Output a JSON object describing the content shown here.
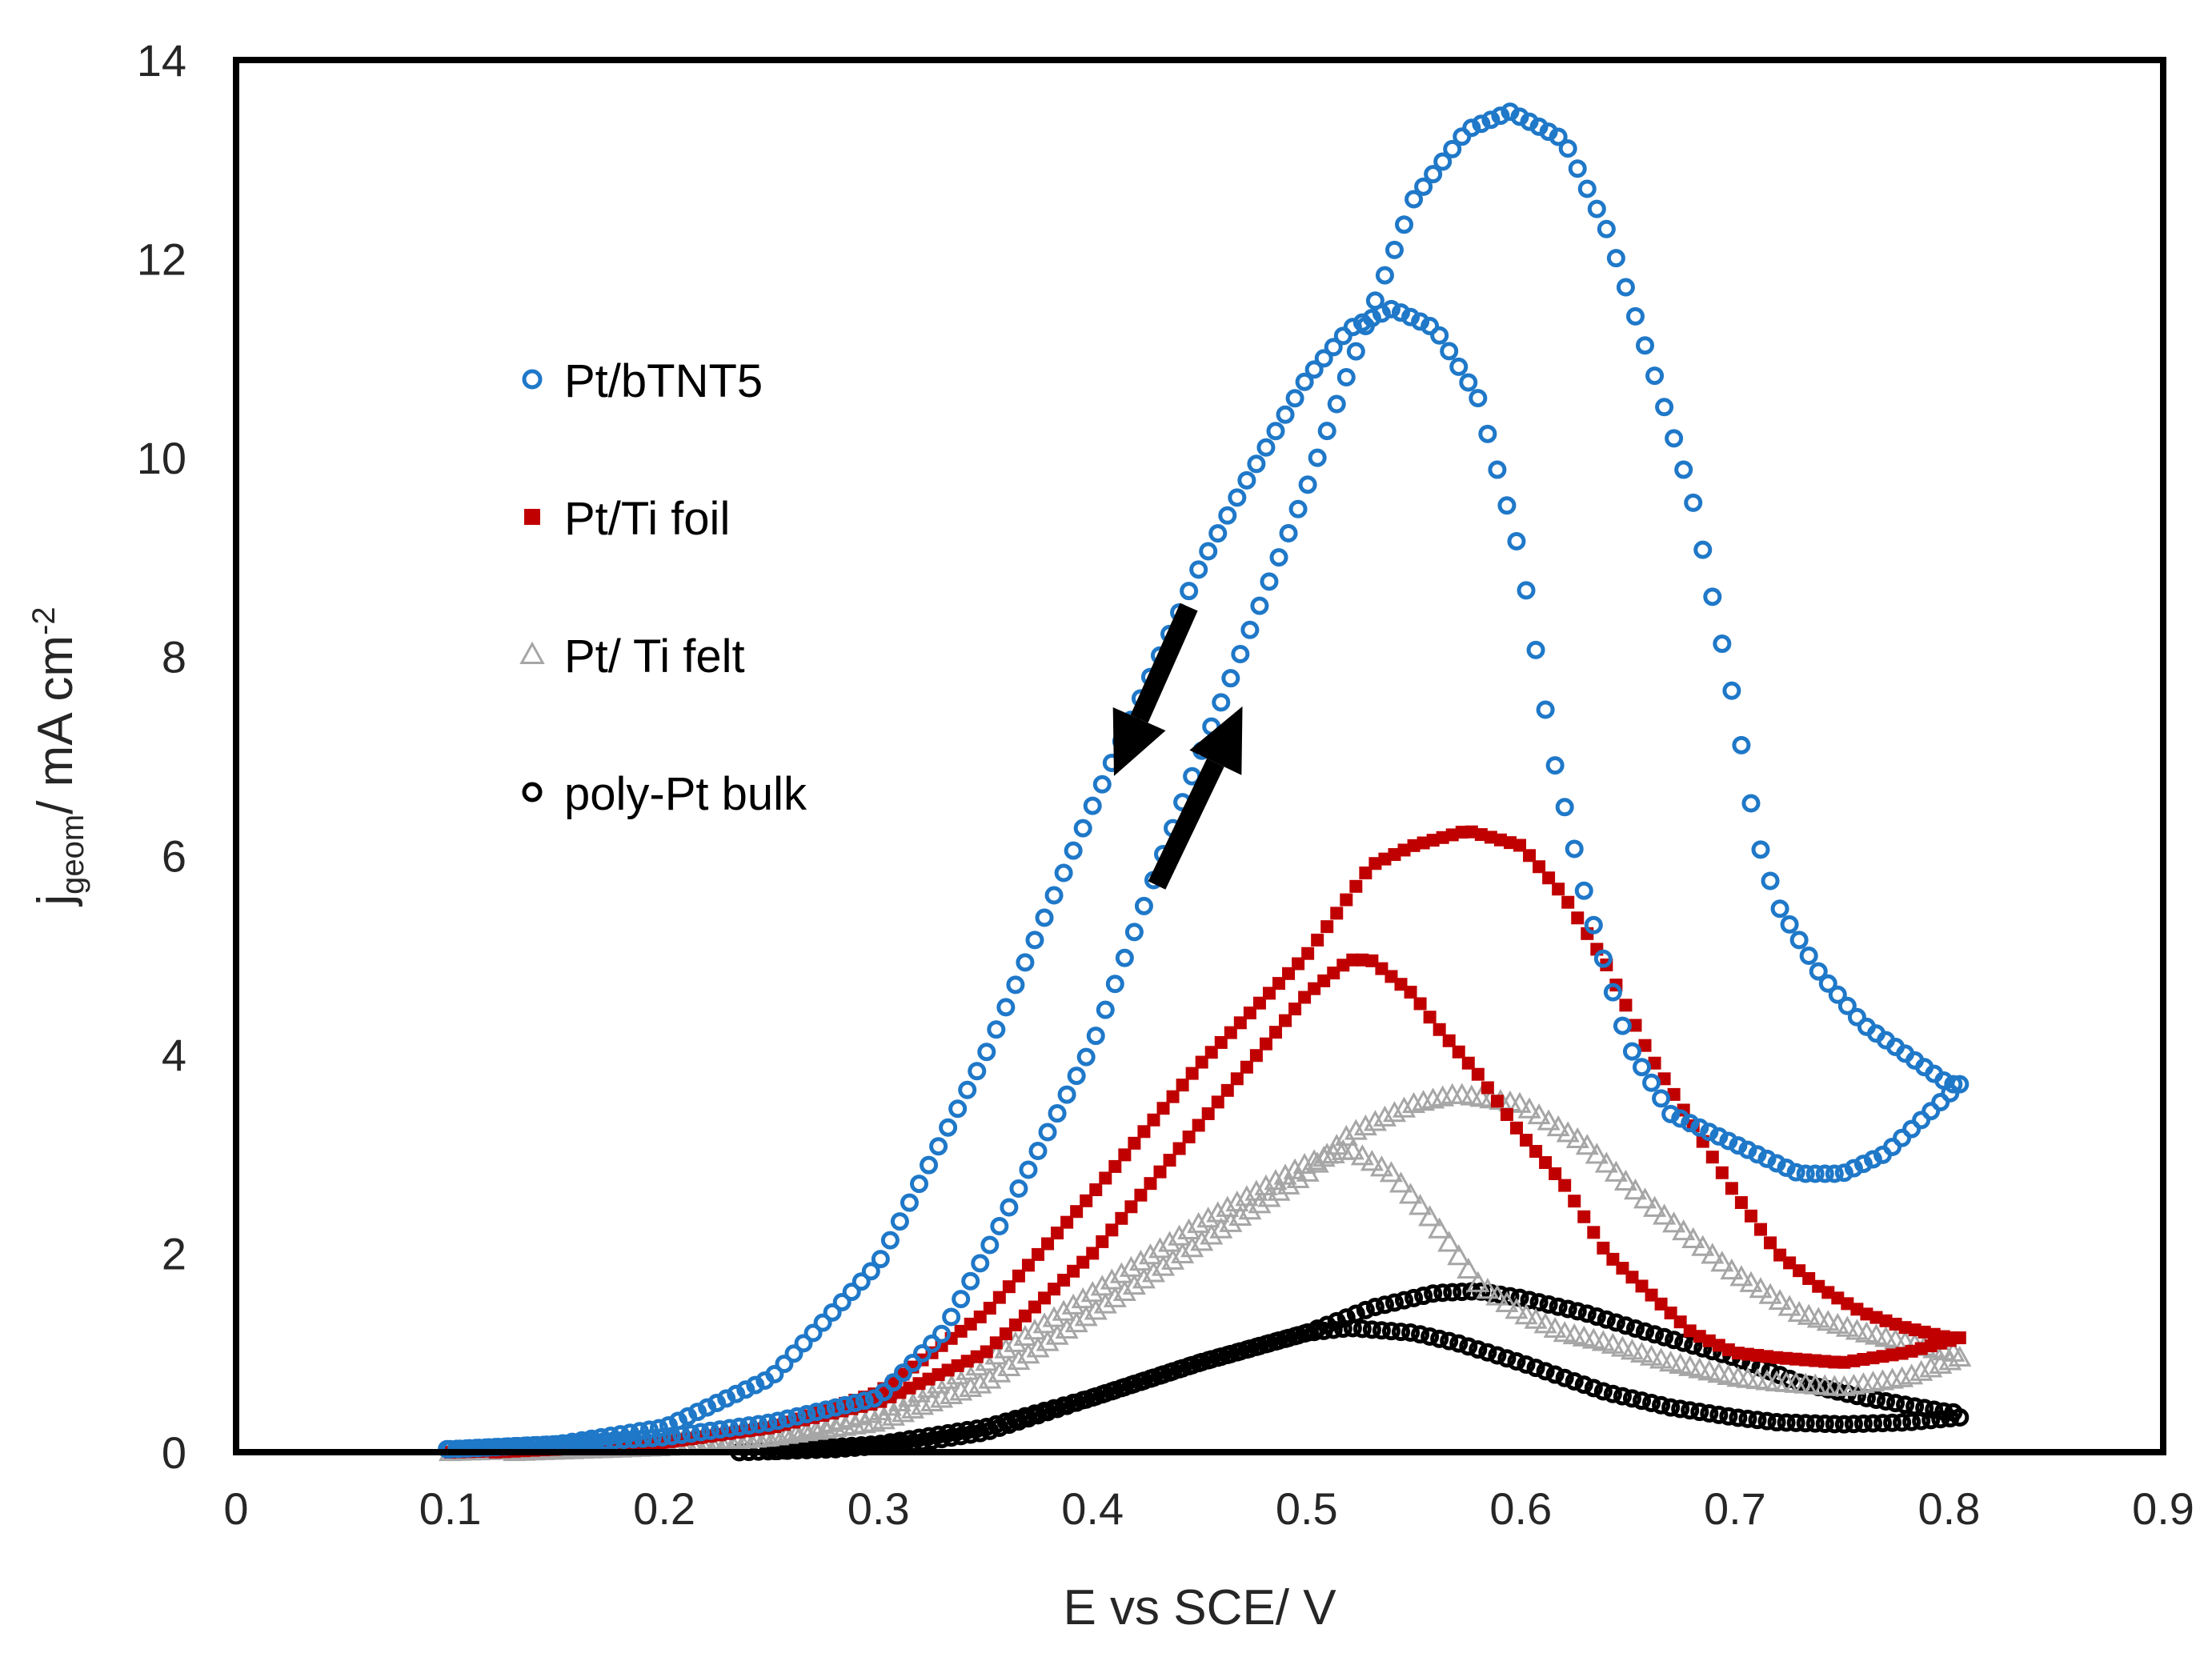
{
  "chart_data": {
    "type": "scatter",
    "title": "",
    "xlabel": "E vs SCE/ V",
    "ylabel": {
      "main": "j",
      "subscript": "geom",
      "rest": "/ mA cm",
      "superscript": "-2"
    },
    "xlim": [
      0,
      0.9
    ],
    "ylim": [
      0,
      14
    ],
    "x_ticks": [
      "0",
      "0.1",
      "0.2",
      "0.3",
      "0.4",
      "0.5",
      "0.6",
      "0.7",
      "0.8",
      "0.9"
    ],
    "y_ticks": [
      "0",
      "2",
      "4",
      "6",
      "8",
      "10",
      "12",
      "14"
    ],
    "grid": false,
    "legend_position": "upper-left-inside",
    "annotations": [
      {
        "type": "arrow",
        "direction": "down-left",
        "meaning": "reverse scan",
        "from": [
          0.445,
          8.5
        ],
        "to": [
          0.41,
          6.8
        ]
      },
      {
        "type": "arrow",
        "direction": "up-right",
        "meaning": "forward scan",
        "from": [
          0.43,
          5.7
        ],
        "to": [
          0.47,
          7.5
        ]
      }
    ],
    "series": [
      {
        "name": "Pt/bTNT5",
        "marker": "circle-open",
        "color": "#1f78c8",
        "branches": [
          {
            "scan": "forward",
            "points": [
              [
                0.1,
                0.03
              ],
              [
                0.15,
                0.08
              ],
              [
                0.2,
                0.15
              ],
              [
                0.25,
                0.3
              ],
              [
                0.3,
                0.55
              ],
              [
                0.33,
                1.2
              ],
              [
                0.35,
                2.0
              ],
              [
                0.4,
                4.1
              ],
              [
                0.45,
                7.0
              ],
              [
                0.5,
                9.7
              ],
              [
                0.52,
                10.9
              ],
              [
                0.55,
                12.6
              ],
              [
                0.575,
                13.3
              ],
              [
                0.595,
                13.48
              ],
              [
                0.62,
                13.2
              ],
              [
                0.64,
                12.3
              ],
              [
                0.66,
                11.0
              ],
              [
                0.68,
                9.6
              ],
              [
                0.7,
                7.5
              ],
              [
                0.71,
                6.2
              ],
              [
                0.72,
                5.5
              ],
              [
                0.74,
                4.8
              ],
              [
                0.76,
                4.3
              ],
              [
                0.78,
                4.0
              ],
              [
                0.8,
                3.7
              ]
            ]
          },
          {
            "scan": "reverse",
            "points": [
              [
                0.805,
                3.7
              ],
              [
                0.79,
                3.4
              ],
              [
                0.77,
                3.0
              ],
              [
                0.75,
                2.8
              ],
              [
                0.73,
                2.8
              ],
              [
                0.7,
                3.1
              ],
              [
                0.67,
                3.4
              ],
              [
                0.65,
                4.1
              ],
              [
                0.63,
                5.6
              ],
              [
                0.615,
                7.0
              ],
              [
                0.6,
                9.0
              ],
              [
                0.58,
                10.6
              ],
              [
                0.56,
                11.3
              ],
              [
                0.54,
                11.5
              ],
              [
                0.52,
                11.3
              ],
              [
                0.5,
                10.8
              ],
              [
                0.47,
                9.7
              ],
              [
                0.45,
                8.9
              ],
              [
                0.4,
                6.5
              ],
              [
                0.35,
                4.0
              ],
              [
                0.3,
                1.9
              ],
              [
                0.25,
                0.75
              ],
              [
                0.2,
                0.25
              ],
              [
                0.15,
                0.08
              ],
              [
                0.1,
                0.03
              ]
            ]
          }
        ]
      },
      {
        "name": "Pt/Ti foil",
        "marker": "square",
        "color": "#c00000",
        "branches": [
          {
            "scan": "forward",
            "points": [
              [
                0.1,
                0.0
              ],
              [
                0.15,
                0.03
              ],
              [
                0.2,
                0.1
              ],
              [
                0.25,
                0.25
              ],
              [
                0.3,
                0.6
              ],
              [
                0.35,
                1.4
              ],
              [
                0.4,
                2.6
              ],
              [
                0.45,
                3.9
              ],
              [
                0.5,
                5.0
              ],
              [
                0.53,
                5.9
              ],
              [
                0.55,
                6.1
              ],
              [
                0.575,
                6.25
              ],
              [
                0.6,
                6.1
              ],
              [
                0.62,
                5.6
              ],
              [
                0.64,
                4.9
              ],
              [
                0.66,
                4.0
              ],
              [
                0.68,
                3.3
              ],
              [
                0.7,
                2.6
              ],
              [
                0.72,
                2.0
              ],
              [
                0.74,
                1.65
              ],
              [
                0.76,
                1.4
              ],
              [
                0.78,
                1.25
              ],
              [
                0.8,
                1.15
              ]
            ]
          },
          {
            "scan": "reverse",
            "points": [
              [
                0.805,
                1.15
              ],
              [
                0.78,
                1.0
              ],
              [
                0.75,
                0.9
              ],
              [
                0.72,
                0.95
              ],
              [
                0.7,
                1.0
              ],
              [
                0.68,
                1.2
              ],
              [
                0.66,
                1.6
              ],
              [
                0.64,
                2.0
              ],
              [
                0.62,
                2.7
              ],
              [
                0.6,
                3.2
              ],
              [
                0.58,
                3.8
              ],
              [
                0.56,
                4.3
              ],
              [
                0.55,
                4.6
              ],
              [
                0.53,
                4.95
              ],
              [
                0.52,
                4.95
              ],
              [
                0.5,
                4.6
              ],
              [
                0.45,
                3.3
              ],
              [
                0.4,
                2.0
              ],
              [
                0.35,
                1.0
              ],
              [
                0.3,
                0.5
              ],
              [
                0.25,
                0.25
              ],
              [
                0.2,
                0.1
              ],
              [
                0.15,
                0.03
              ],
              [
                0.12,
                0.0
              ]
            ]
          }
        ]
      },
      {
        "name": "Pt/ Ti felt",
        "marker": "triangle-open",
        "color": "#a6a6a6",
        "branches": [
          {
            "scan": "forward",
            "points": [
              [
                0.1,
                0.0
              ],
              [
                0.15,
                0.03
              ],
              [
                0.2,
                0.08
              ],
              [
                0.25,
                0.15
              ],
              [
                0.3,
                0.3
              ],
              [
                0.35,
                0.7
              ],
              [
                0.4,
                1.4
              ],
              [
                0.45,
                2.1
              ],
              [
                0.5,
                2.8
              ],
              [
                0.52,
                3.2
              ],
              [
                0.55,
                3.5
              ],
              [
                0.57,
                3.6
              ],
              [
                0.6,
                3.5
              ],
              [
                0.63,
                3.1
              ],
              [
                0.66,
                2.5
              ],
              [
                0.7,
                1.8
              ],
              [
                0.73,
                1.4
              ],
              [
                0.76,
                1.2
              ],
              [
                0.8,
                1.0
              ]
            ]
          },
          {
            "scan": "reverse",
            "points": [
              [
                0.805,
                0.95
              ],
              [
                0.78,
                0.75
              ],
              [
                0.75,
                0.65
              ],
              [
                0.72,
                0.7
              ],
              [
                0.7,
                0.75
              ],
              [
                0.67,
                0.9
              ],
              [
                0.64,
                1.1
              ],
              [
                0.62,
                1.2
              ],
              [
                0.6,
                1.4
              ],
              [
                0.58,
                1.7
              ],
              [
                0.56,
                2.3
              ],
              [
                0.54,
                2.8
              ],
              [
                0.52,
                3.05
              ],
              [
                0.5,
                2.9
              ],
              [
                0.45,
                2.3
              ],
              [
                0.4,
                1.6
              ],
              [
                0.35,
                0.9
              ],
              [
                0.3,
                0.4
              ],
              [
                0.25,
                0.15
              ],
              [
                0.2,
                0.05
              ],
              [
                0.13,
                0.0
              ]
            ]
          }
        ]
      },
      {
        "name": "poly-Pt bulk",
        "marker": "circle-open",
        "color": "#000000",
        "branches": [
          {
            "scan": "forward",
            "points": [
              [
                0.235,
                0.0
              ],
              [
                0.28,
                0.03
              ],
              [
                0.32,
                0.1
              ],
              [
                0.35,
                0.2
              ],
              [
                0.4,
                0.55
              ],
              [
                0.45,
                0.9
              ],
              [
                0.5,
                1.2
              ],
              [
                0.53,
                1.45
              ],
              [
                0.56,
                1.6
              ],
              [
                0.58,
                1.62
              ],
              [
                0.6,
                1.55
              ],
              [
                0.63,
                1.4
              ],
              [
                0.66,
                1.2
              ],
              [
                0.7,
                0.95
              ],
              [
                0.73,
                0.7
              ],
              [
                0.76,
                0.55
              ],
              [
                0.8,
                0.4
              ]
            ]
          },
          {
            "scan": "reverse",
            "points": [
              [
                0.805,
                0.35
              ],
              [
                0.78,
                0.3
              ],
              [
                0.75,
                0.28
              ],
              [
                0.72,
                0.3
              ],
              [
                0.7,
                0.35
              ],
              [
                0.67,
                0.45
              ],
              [
                0.64,
                0.6
              ],
              [
                0.62,
                0.75
              ],
              [
                0.6,
                0.9
              ],
              [
                0.57,
                1.1
              ],
              [
                0.55,
                1.2
              ],
              [
                0.52,
                1.25
              ],
              [
                0.5,
                1.2
              ],
              [
                0.45,
                0.9
              ],
              [
                0.4,
                0.55
              ],
              [
                0.35,
                0.25
              ],
              [
                0.3,
                0.08
              ],
              [
                0.25,
                0.01
              ]
            ]
          }
        ]
      }
    ]
  }
}
